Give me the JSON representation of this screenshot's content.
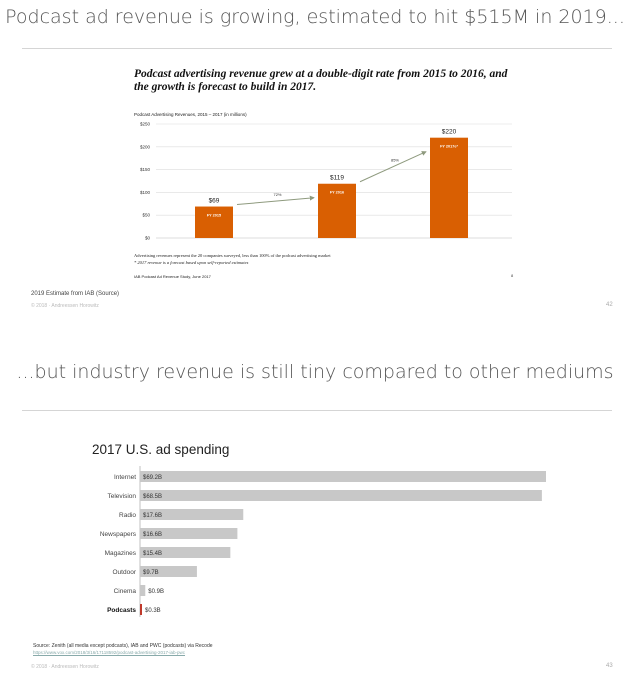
{
  "slide1": {
    "heading": "Podcast ad revenue is growing, estimated to hit $515M in 2019...",
    "chart_title": "Podcast advertising revenue grew at a double-digit rate from 2015 to 2016, and the growth is forecast to build in 2017.",
    "chart_subtitle": "Podcast Advertising Revenues, 2015 – 2017 (in millions)",
    "note1": "Advertising revenues represent the 20 companies surveyed, less than 100% of the podcast advertising market",
    "note2": "* 2017 revenue is a forecast based upon self-reported estimates",
    "source_inner": "IAB Podcast Ad Revenue Study, June 2017",
    "inner_page": "8",
    "footnote": "2019 Estimate from IAB (Source)",
    "copyright": "© 2018 · Andreessen Horowitz",
    "page": "42"
  },
  "slide2": {
    "heading": "...but industry revenue is still tiny compared to other mediums",
    "chart_title": "2017 U.S. ad spending",
    "source": "Source: Zenith (all media except podcasts), IAB and PWC (podcasts) via Recode",
    "source_url": "https://www.vox.com/2018/3/16/17118592/podcast-advertising-2017-iab-pwc",
    "copyright": "© 2018 · Andreessen Horowitz",
    "page": "43"
  },
  "chart_data": [
    {
      "type": "bar",
      "title": "Podcast advertising revenue grew at a double-digit rate from 2015 to 2016, and the growth is forecast to build in 2017.",
      "categories": [
        "FY 2015",
        "FY 2016",
        "FY 2017e*"
      ],
      "values": [
        69,
        119,
        220
      ],
      "value_labels": [
        "$69",
        "$119",
        "$220"
      ],
      "growth_labels": [
        "72%",
        "85%"
      ],
      "yticks": [
        "$0",
        "$50",
        "$100",
        "$150",
        "$200",
        "$250"
      ],
      "ylim": [
        0,
        250
      ],
      "color": "#d95f02",
      "grid": true
    },
    {
      "type": "bar",
      "orientation": "horizontal",
      "title": "2017 U.S. ad spending",
      "categories": [
        "Internet",
        "Television",
        "Radio",
        "Newspapers",
        "Magazines",
        "Outdoor",
        "Cinema",
        "Podcasts"
      ],
      "values": [
        69.2,
        68.5,
        17.6,
        16.6,
        15.4,
        9.7,
        0.9,
        0.3
      ],
      "value_labels": [
        "$69.2B",
        "$68.5B",
        "$17.6B",
        "$16.6B",
        "$15.4B",
        "$9.7B",
        "$0.9B",
        "$0.3B"
      ],
      "colors": {
        "default": "#c8c8c8",
        "highlight": "#c0392b"
      },
      "highlight": "Podcasts"
    }
  ]
}
